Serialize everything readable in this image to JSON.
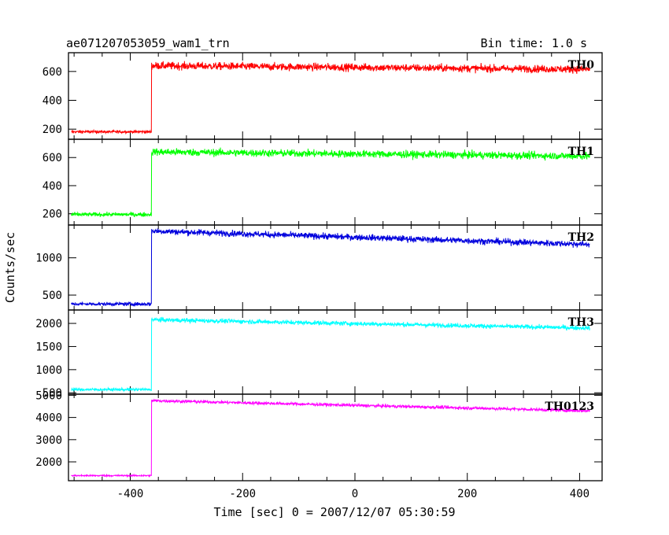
{
  "chart_data": {
    "type": "line",
    "title_left": "ae071207053059_wam1_trn",
    "title_right": "Bin time: 1.0 s",
    "xlabel": "Time [sec] 0 = 2007/12/07 05:30:59",
    "ylabel": "Counts/sec",
    "xlim": [
      -510,
      440
    ],
    "x_ticks": [
      -400,
      -200,
      0,
      200,
      400
    ],
    "grid": false,
    "series": [
      {
        "name": "TH0",
        "color": "#ff0000",
        "x_start": -505,
        "x_end": 418,
        "x_step": 0.5,
        "step_time": -362,
        "pre_level": 182,
        "post_start": 640,
        "post_end": 615,
        "noise": 22,
        "pre_noise": 8,
        "ylim": [
          130,
          730
        ],
        "y_ticks": [
          200,
          400,
          600
        ]
      },
      {
        "name": "TH1",
        "color": "#00ff00",
        "x_start": -505,
        "x_end": 418,
        "x_step": 0.5,
        "step_time": -362,
        "pre_level": 195,
        "post_start": 640,
        "post_end": 610,
        "noise": 22,
        "pre_noise": 12,
        "ylim": [
          120,
          730
        ],
        "y_ticks": [
          200,
          400,
          600
        ]
      },
      {
        "name": "TH2",
        "color": "#0000dd",
        "x_start": -505,
        "x_end": 418,
        "x_step": 0.5,
        "step_time": -362,
        "pre_level": 380,
        "post_start": 1360,
        "post_end": 1180,
        "noise": 35,
        "pre_noise": 20,
        "ylim": [
          300,
          1440
        ],
        "y_ticks": [
          500,
          1000
        ]
      },
      {
        "name": "TH3",
        "color": "#00ffff",
        "x_start": -505,
        "x_end": 418,
        "x_step": 0.5,
        "step_time": -362,
        "pre_level": 570,
        "post_start": 2080,
        "post_end": 1900,
        "noise": 40,
        "pre_noise": 25,
        "ylim": [
          470,
          2290
        ],
        "y_ticks": [
          500,
          1000,
          1500,
          2000
        ]
      },
      {
        "name": "TH0123",
        "color": "#ff00ff",
        "x_start": -505,
        "x_end": 418,
        "x_step": 0.5,
        "step_time": -362,
        "pre_level": 1380,
        "post_start": 4760,
        "post_end": 4300,
        "noise": 60,
        "pre_noise": 30,
        "ylim": [
          1150,
          5050
        ],
        "y_ticks": [
          2000,
          3000,
          4000,
          5000
        ]
      }
    ]
  }
}
